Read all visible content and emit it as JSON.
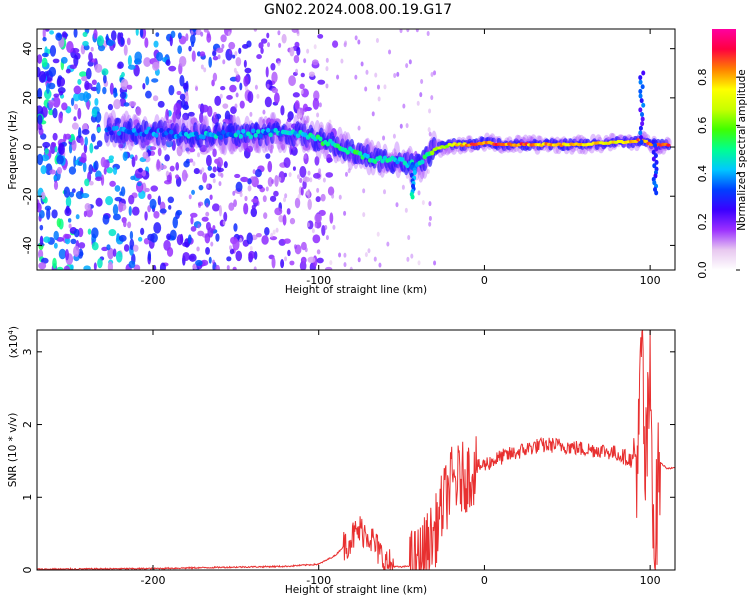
{
  "chart_data": [
    {
      "type": "heatmap",
      "title": "GN02.2024.008.00.19.G17",
      "xlabel": "Height of straight line (km)",
      "ylabel": "Frequency (Hz)",
      "xlim": [
        -270,
        115
      ],
      "ylim": [
        -50,
        48
      ],
      "xticks": [
        "-200",
        "-100",
        "0",
        "100"
      ],
      "yticks": [
        "40",
        "20",
        "0",
        "-20",
        "-40"
      ],
      "colorbar": {
        "label": "Normalized spectral amplitude",
        "range": [
          0,
          1
        ],
        "ticks": [
          "0.0",
          "0.2",
          "0.4",
          "0.6",
          "0.8"
        ],
        "colormap": [
          "#ffffff",
          "#e8c8f0",
          "#9b30ff",
          "#3a00ff",
          "#0040ff",
          "#00c8ff",
          "#00ff90",
          "#40ff00",
          "#c8ff00",
          "#ffff00",
          "#ff8000",
          "#ff0040",
          "#ff00a0"
        ]
      },
      "trace": {
        "x": [
          -225,
          -200,
          -175,
          -150,
          -125,
          -110,
          -95,
          -80,
          -65,
          -50,
          -42,
          -38,
          -30,
          -20,
          -10,
          -5,
          0,
          10,
          20,
          40,
          60,
          80,
          90,
          95,
          100,
          105,
          115
        ],
        "y": [
          7,
          6,
          5,
          5,
          6,
          5,
          2,
          -2,
          -5,
          -6,
          -8,
          -6,
          -1,
          1,
          1,
          1,
          2,
          1,
          1,
          1,
          1,
          2,
          2,
          3,
          1,
          1,
          1
        ],
        "amplitude": [
          0.35,
          0.35,
          0.4,
          0.4,
          0.4,
          0.45,
          0.5,
          0.5,
          0.45,
          0.45,
          0.4,
          0.5,
          0.6,
          0.7,
          0.8,
          0.85,
          0.85,
          0.85,
          0.85,
          0.8,
          0.75,
          0.75,
          0.8,
          0.85,
          0.85,
          0.85,
          0.85
        ]
      },
      "features": [
        {
          "x": -43,
          "y": -20,
          "note": "branch"
        },
        {
          "x": 95,
          "y": 30,
          "note": "spike"
        },
        {
          "x": 103,
          "y": -22,
          "note": "spike"
        }
      ]
    },
    {
      "type": "line",
      "xlabel": "Height of straight line (km)",
      "ylabel": "SNR (10 * v/v)",
      "yscale_label": "(x10",
      "yscale_exp": "4",
      "xlim": [
        -270,
        115
      ],
      "ylim": [
        0,
        3.3
      ],
      "xticks": [
        "-200",
        "-100",
        "0",
        "100"
      ],
      "yticks": [
        "0",
        "1",
        "2",
        "3"
      ],
      "line_color": "#e83030",
      "series": {
        "x": [
          -270,
          -200,
          -150,
          -120,
          -100,
          -90,
          -80,
          -75,
          -70,
          -65,
          -60,
          -55,
          -50,
          -45,
          -40,
          -35,
          -30,
          -25,
          -20,
          -15,
          -10,
          -5,
          0,
          10,
          20,
          30,
          40,
          50,
          60,
          70,
          80,
          85,
          90,
          93,
          95,
          97,
          100,
          103,
          105,
          110,
          115
        ],
        "y": [
          0.01,
          0.02,
          0.04,
          0.05,
          0.08,
          0.2,
          0.45,
          0.55,
          0.5,
          0.3,
          0.1,
          0.05,
          0.04,
          0.06,
          0.12,
          0.3,
          0.5,
          0.9,
          1.2,
          1.25,
          1.3,
          1.4,
          1.45,
          1.55,
          1.62,
          1.7,
          1.72,
          1.7,
          1.66,
          1.65,
          1.6,
          1.55,
          1.5,
          1.6,
          3.2,
          1.2,
          2.6,
          0.1,
          1.5,
          1.4,
          1.4
        ]
      }
    }
  ]
}
